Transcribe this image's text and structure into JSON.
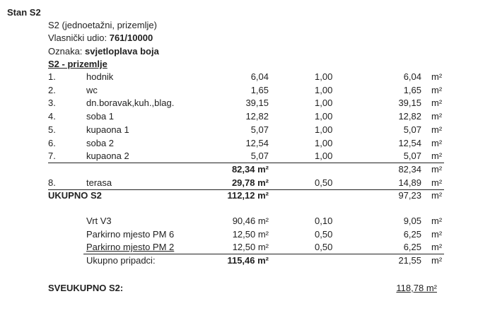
{
  "title": "Stan S2",
  "info": {
    "description": "S2 (jednoetažni, prizemlje)",
    "share_label": "Vlasnički udio: ",
    "share_value": "761/10000",
    "mark_label": "Oznaka: ",
    "mark_value": "svjetloplava boja",
    "section": "S2 - prizemlje"
  },
  "unit": "m²",
  "rooms": [
    {
      "no": "1.",
      "name": "hodnik",
      "area": "6,04",
      "coef": "1,00",
      "result": "6,04"
    },
    {
      "no": "2.",
      "name": "wc",
      "area": "1,65",
      "coef": "1,00",
      "result": "1,65"
    },
    {
      "no": "3.",
      "name": "dn.boravak,kuh.,blag.",
      "area": "39,15",
      "coef": "1,00",
      "result": "39,15"
    },
    {
      "no": "4.",
      "name": "soba 1",
      "area": "12,82",
      "coef": "1,00",
      "result": "12,82"
    },
    {
      "no": "5.",
      "name": "kupaona 1",
      "area": "5,07",
      "coef": "1,00",
      "result": "5,07"
    },
    {
      "no": "6.",
      "name": "soba 2",
      "area": "12,54",
      "coef": "1,00",
      "result": "12,54"
    },
    {
      "no": "7.",
      "name": "kupaona  2",
      "area": "5,07",
      "coef": "1,00",
      "result": "5,07"
    }
  ],
  "subtotal": {
    "area": "82,34 m²",
    "result": "82,34"
  },
  "terrace": {
    "no": "8.",
    "name": "terasa",
    "area": "29,78 m²",
    "coef": "0,50",
    "result": "14,89"
  },
  "total": {
    "label": "UKUPNO S2",
    "area": "112,12 m²",
    "result": "97,23"
  },
  "appurtenances": [
    {
      "name": "Vrt  V3",
      "area": "90,46 m²",
      "coef": "0,10",
      "result": "9,05"
    },
    {
      "name": "Parkirno mjesto PM 6",
      "area": "12,50 m²",
      "coef": "0,50",
      "result": "6,25"
    },
    {
      "name": "Parkirno mjesto PM 2",
      "area": "12,50 m²",
      "coef": "0,50",
      "result": "6,25"
    }
  ],
  "appurtenances_total": {
    "label": "Ukupno pripadci:",
    "area": "115,46 m²",
    "result": "21,55"
  },
  "grand_total": {
    "label": "SVEUKUPNO S2:",
    "value": "118,78 m²"
  }
}
